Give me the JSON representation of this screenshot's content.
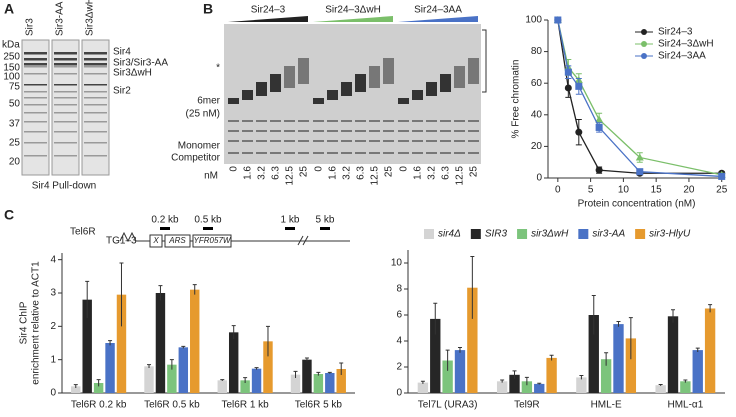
{
  "panel_labels": [
    "A",
    "B",
    "C"
  ],
  "gel_a": {
    "unit": "kDa",
    "lanes": [
      "Sir3",
      "Sir3-AA",
      "Sir3ΔwH"
    ],
    "markers": [
      250,
      150,
      100,
      75,
      50,
      37,
      25,
      20
    ],
    "bands": [
      "Sir4",
      "Sir3/Sir3-AA",
      "Sir3ΔwH",
      "Sir2"
    ],
    "caption": "Sir4 Pull-down"
  },
  "gel_b": {
    "groups": [
      "Sir24–3",
      "Sir24–3ΔwH",
      "Sir24–3AA"
    ],
    "marks": [
      "*",
      "6mer",
      "(25 nM)",
      "Monomer",
      "Competitor"
    ],
    "unit": "nM",
    "concentrations": [
      "0",
      "1.6",
      "3.2",
      "6.3",
      "12.5",
      "25"
    ]
  },
  "diagram_c": {
    "locus": "Tel6R",
    "repeat": "TG1–3",
    "elements": [
      "X",
      "ARS",
      "YFR057W"
    ],
    "probes": [
      "0.2 kb",
      "0.5 kb",
      "1 kb",
      "5 kb"
    ]
  },
  "chart_data": [
    {
      "type": "line",
      "y_label": "% Free chromatin",
      "x_label": "Protein concentration (nM)",
      "x": [
        0,
        1.6,
        3.2,
        6.3,
        12.5,
        25
      ],
      "xlim": [
        -1.5,
        25.5
      ],
      "xticks": [
        0,
        5,
        10,
        15,
        20,
        25
      ],
      "ylim": [
        0,
        100
      ],
      "yticks": [
        0,
        20,
        40,
        60,
        80,
        100
      ],
      "legend": "upper right",
      "series": [
        {
          "name": "Sir24–3",
          "color": "#222222",
          "marker": "circle",
          "values": [
            100,
            57,
            29,
            5,
            3,
            3
          ],
          "errors": [
            0,
            6,
            8,
            2,
            1,
            1
          ]
        },
        {
          "name": "Sir24–3ΔwH",
          "color": "#7bbf6a",
          "marker": "triangle",
          "values": [
            100,
            70,
            62,
            37,
            13,
            2
          ],
          "errors": [
            0,
            5,
            4,
            4,
            3,
            1
          ]
        },
        {
          "name": "Sir24–3AA",
          "color": "#4a72c6",
          "marker": "square",
          "values": [
            100,
            67,
            58,
            32,
            4,
            1
          ],
          "errors": [
            0,
            4,
            5,
            3,
            1,
            1
          ]
        }
      ]
    },
    {
      "type": "bar",
      "y_label": [
        "Sir4 ChIP",
        "enrichment relative to ACT1"
      ],
      "categories": [
        "Tel6R 0.2 kb",
        "Tel6R 0.5 kb",
        "Tel6R 1 kb",
        "Tel6R 5 kb"
      ],
      "ylim": [
        0,
        4.2
      ],
      "yticks": [
        0,
        1,
        2,
        3,
        4
      ],
      "series": [
        {
          "color": "#d4d4d4",
          "values": [
            0.2,
            0.8,
            0.38,
            0.55
          ],
          "errors": [
            0.05,
            0.05,
            0.02,
            0.1
          ]
        },
        {
          "color": "#262626",
          "values": [
            2.8,
            3.0,
            1.82,
            1.0
          ],
          "errors": [
            0.55,
            0.22,
            0.2,
            0.05
          ]
        },
        {
          "color": "#7cc47c",
          "values": [
            0.3,
            0.85,
            0.38,
            0.57
          ],
          "errors": [
            0.1,
            0.15,
            0.08,
            0.05
          ]
        },
        {
          "color": "#4a72c6",
          "values": [
            1.5,
            1.37,
            0.73,
            0.6
          ],
          "errors": [
            0.07,
            0.03,
            0.03,
            0.02
          ]
        },
        {
          "color": "#e69a2e",
          "values": [
            2.95,
            3.1,
            1.55,
            0.72
          ],
          "errors": [
            0.95,
            0.15,
            0.45,
            0.18
          ]
        }
      ]
    },
    {
      "type": "bar",
      "legend": "top",
      "categories": [
        "Tel7L (URA3)",
        "Tel9R",
        "HML-E",
        "HML-α1"
      ],
      "ylim": [
        0,
        11
      ],
      "yticks": [
        0,
        2,
        4,
        6,
        8,
        10
      ],
      "series": [
        {
          "name": "sir4Δ",
          "color": "#d4d4d4",
          "values": [
            0.8,
            0.9,
            1.2,
            0.6
          ],
          "errors": [
            0.1,
            0.1,
            0.15,
            0.05
          ]
        },
        {
          "name": "SIR3",
          "color": "#262626",
          "values": [
            5.7,
            1.4,
            6.0,
            5.9
          ],
          "errors": [
            1.2,
            0.3,
            1.5,
            0.5
          ]
        },
        {
          "name": "sir3ΔwH",
          "color": "#7cc47c",
          "values": [
            2.5,
            0.9,
            2.6,
            0.9
          ],
          "errors": [
            0.8,
            0.3,
            0.5,
            0.1
          ]
        },
        {
          "name": "sir3-AA",
          "color": "#4a72c6",
          "values": [
            3.3,
            0.7,
            5.3,
            3.3
          ],
          "errors": [
            0.2,
            0.05,
            0.2,
            0.15
          ]
        },
        {
          "name": "sir3-HlyU",
          "color": "#e69a2e",
          "values": [
            8.1,
            2.7,
            4.2,
            6.5
          ],
          "errors": [
            2.4,
            0.2,
            1.6,
            0.3
          ]
        }
      ]
    }
  ]
}
